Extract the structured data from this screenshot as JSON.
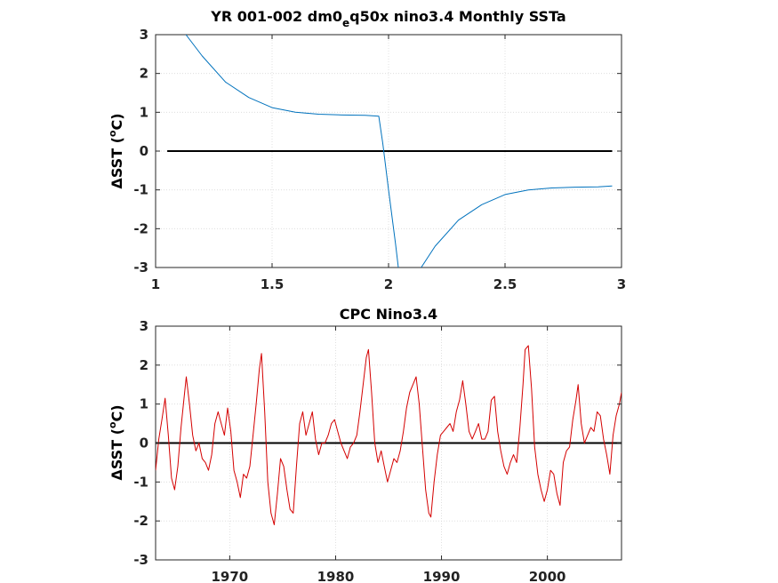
{
  "chart_data": [
    {
      "type": "line",
      "title": "YR 001-002 dm0",
      "title_sub": "e",
      "title_rest": "q50x nino3.4 Monthly SSTa",
      "ylabel_main": "ΔSST (",
      "ylabel_sup": "o",
      "ylabel_end": "C)",
      "xlim": [
        1,
        3
      ],
      "ylim": [
        -3,
        3
      ],
      "xticks": [
        "1",
        "1.5",
        "2",
        "2.5",
        "3"
      ],
      "xtick_values": [
        1,
        1.5,
        2,
        2.5,
        3
      ],
      "yticks": [
        "3",
        "2",
        "1",
        "0",
        "-1",
        "-2",
        "-3"
      ],
      "ytick_values": [
        3,
        2,
        1,
        0,
        -1,
        -2,
        -3
      ],
      "grid": true,
      "series": [
        {
          "color": "#0072bd",
          "x": [
            1.13,
            1.2,
            1.3,
            1.4,
            1.5,
            1.6,
            1.7,
            1.8,
            1.9,
            1.958,
            1.975,
            2.0,
            2.03,
            2.042
          ],
          "y": [
            3.0,
            2.45,
            1.78,
            1.38,
            1.12,
            1.0,
            0.95,
            0.93,
            0.92,
            0.9,
            0.2,
            -1.0,
            -2.4,
            -3.0
          ]
        },
        {
          "color": "#0072bd",
          "x": [
            2.14,
            2.2,
            2.3,
            2.4,
            2.5,
            2.6,
            2.7,
            2.8,
            2.9,
            2.96
          ],
          "y": [
            -3.0,
            -2.45,
            -1.78,
            -1.38,
            -1.12,
            -1.0,
            -0.95,
            -0.93,
            -0.92,
            -0.9
          ]
        }
      ],
      "zero_line": {
        "color": "#000000",
        "x": [
          1.05,
          2.96
        ],
        "y": 0
      }
    },
    {
      "type": "line",
      "title": "CPC Nino3.4",
      "ylabel_main": "ΔSST (",
      "ylabel_sup": "o",
      "ylabel_end": "C)",
      "xlim": [
        1963,
        2007
      ],
      "ylim": [
        -3,
        3
      ],
      "xticks": [
        "1970",
        "1980",
        "1990",
        "2000"
      ],
      "xtick_values": [
        1970,
        1980,
        1990,
        2000
      ],
      "yticks": [
        "3",
        "2",
        "1",
        "0",
        "-1",
        "-2",
        "-3"
      ],
      "ytick_values": [
        3,
        2,
        1,
        0,
        -1,
        -2,
        -3
      ],
      "grid": true,
      "series": [
        {
          "color": "#d40000",
          "x": [
            1963.0,
            1963.3,
            1963.6,
            1963.9,
            1964.2,
            1964.5,
            1964.8,
            1965.1,
            1965.4,
            1965.7,
            1965.9,
            1966.2,
            1966.5,
            1966.8,
            1967.1,
            1967.4,
            1967.7,
            1968.0,
            1968.3,
            1968.6,
            1968.9,
            1969.2,
            1969.5,
            1969.8,
            1970.1,
            1970.4,
            1970.7,
            1971.0,
            1971.3,
            1971.6,
            1971.9,
            1972.2,
            1972.5,
            1972.8,
            1973.0,
            1973.3,
            1973.6,
            1973.9,
            1974.2,
            1974.5,
            1974.8,
            1975.1,
            1975.4,
            1975.7,
            1976.0,
            1976.3,
            1976.6,
            1976.9,
            1977.2,
            1977.5,
            1977.8,
            1978.1,
            1978.4,
            1978.7,
            1979.0,
            1979.3,
            1979.6,
            1979.9,
            1980.2,
            1980.5,
            1980.8,
            1981.1,
            1981.4,
            1981.7,
            1982.0,
            1982.3,
            1982.6,
            1982.9,
            1983.1,
            1983.4,
            1983.7,
            1984.0,
            1984.3,
            1984.6,
            1984.9,
            1985.2,
            1985.5,
            1985.8,
            1986.1,
            1986.4,
            1986.7,
            1987.0,
            1987.3,
            1987.6,
            1987.9,
            1988.2,
            1988.5,
            1988.8,
            1989.0,
            1989.3,
            1989.6,
            1989.9,
            1990.2,
            1990.5,
            1990.8,
            1991.1,
            1991.4,
            1991.7,
            1992.0,
            1992.3,
            1992.6,
            1992.9,
            1993.2,
            1993.5,
            1993.8,
            1994.1,
            1994.4,
            1994.7,
            1995.0,
            1995.3,
            1995.6,
            1995.9,
            1996.2,
            1996.5,
            1996.8,
            1997.1,
            1997.4,
            1997.7,
            1997.9,
            1998.2,
            1998.5,
            1998.8,
            1999.1,
            1999.4,
            1999.7,
            2000.0,
            2000.3,
            2000.6,
            2000.9,
            2001.2,
            2001.5,
            2001.8,
            2002.1,
            2002.4,
            2002.7,
            2002.9,
            2003.2,
            2003.5,
            2003.8,
            2004.1,
            2004.4,
            2004.7,
            2005.0,
            2005.3,
            2005.6,
            2005.9,
            2006.2,
            2006.5,
            2006.8,
            2007.0
          ],
          "y": [
            -0.7,
            0.1,
            0.6,
            1.15,
            0.2,
            -0.9,
            -1.2,
            -0.6,
            0.4,
            1.2,
            1.7,
            1.0,
            0.2,
            -0.2,
            0.0,
            -0.4,
            -0.5,
            -0.7,
            -0.3,
            0.5,
            0.8,
            0.5,
            0.2,
            0.9,
            0.3,
            -0.7,
            -1.0,
            -1.4,
            -0.8,
            -0.9,
            -0.6,
            0.2,
            1.0,
            1.9,
            2.3,
            0.8,
            -1.0,
            -1.8,
            -2.1,
            -1.3,
            -0.4,
            -0.6,
            -1.2,
            -1.7,
            -1.8,
            -0.6,
            0.5,
            0.8,
            0.2,
            0.5,
            0.8,
            0.1,
            -0.3,
            0.0,
            0.0,
            0.2,
            0.5,
            0.6,
            0.3,
            0.0,
            -0.2,
            -0.4,
            -0.1,
            0.0,
            0.2,
            0.8,
            1.5,
            2.2,
            2.4,
            1.3,
            0.0,
            -0.5,
            -0.2,
            -0.6,
            -1.0,
            -0.7,
            -0.4,
            -0.5,
            -0.2,
            0.3,
            0.9,
            1.3,
            1.5,
            1.7,
            1.0,
            -0.1,
            -1.2,
            -1.8,
            -1.9,
            -1.0,
            -0.3,
            0.2,
            0.3,
            0.4,
            0.5,
            0.3,
            0.8,
            1.1,
            1.6,
            1.0,
            0.3,
            0.1,
            0.3,
            0.5,
            0.1,
            0.1,
            0.3,
            1.1,
            1.2,
            0.3,
            -0.2,
            -0.6,
            -0.8,
            -0.5,
            -0.3,
            -0.5,
            0.4,
            1.5,
            2.4,
            2.5,
            1.4,
            -0.1,
            -0.8,
            -1.2,
            -1.5,
            -1.2,
            -0.7,
            -0.8,
            -1.3,
            -1.6,
            -0.5,
            -0.2,
            -0.1,
            0.6,
            1.1,
            1.5,
            0.5,
            0.0,
            0.2,
            0.4,
            0.3,
            0.8,
            0.7,
            0.1,
            -0.3,
            -0.8,
            0.2,
            0.7,
            1.0,
            1.3
          ]
        }
      ],
      "zero_line": {
        "color": "#000000",
        "x": [
          1963,
          2007
        ],
        "y": 0
      }
    }
  ]
}
